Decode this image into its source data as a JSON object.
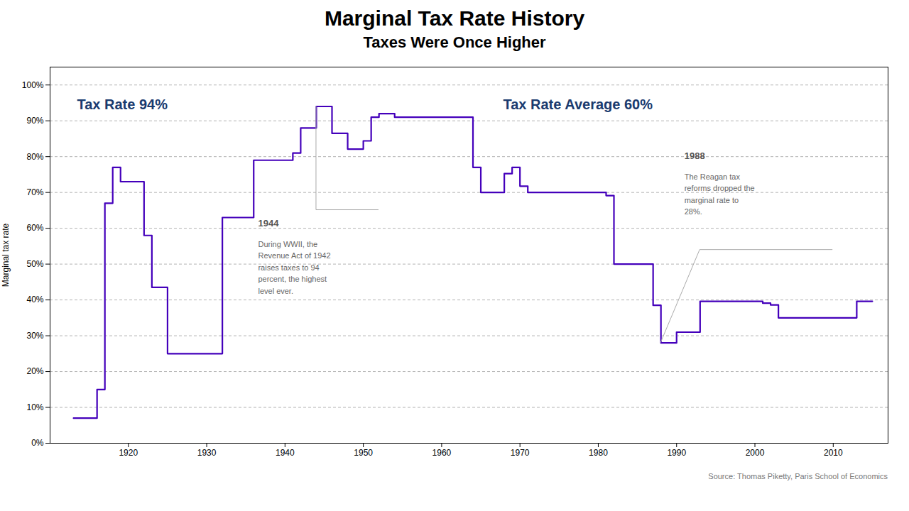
{
  "chart_data": {
    "type": "step",
    "title": "Marginal Tax Rate History",
    "subtitle": "Taxes Were Once Higher",
    "ylabel": "Marginal tax rate",
    "source": "Source: Thomas Piketty, Paris School of Economics",
    "color": "#4400bb",
    "x": [
      1913,
      1916,
      1917,
      1918,
      1919,
      1920,
      1921,
      1922,
      1923,
      1924,
      1925,
      1926,
      1927,
      1928,
      1929,
      1930,
      1931,
      1932,
      1933,
      1934,
      1935,
      1936,
      1937,
      1938,
      1939,
      1940,
      1941,
      1942,
      1943,
      1944,
      1945,
      1946,
      1947,
      1948,
      1949,
      1950,
      1951,
      1952,
      1953,
      1954,
      1955,
      1956,
      1957,
      1958,
      1959,
      1960,
      1961,
      1962,
      1963,
      1964,
      1965,
      1966,
      1967,
      1968,
      1969,
      1970,
      1971,
      1972,
      1973,
      1974,
      1975,
      1976,
      1977,
      1978,
      1979,
      1980,
      1981,
      1982,
      1983,
      1984,
      1985,
      1986,
      1987,
      1988,
      1989,
      1990,
      1991,
      1992,
      1993,
      1994,
      1995,
      1996,
      1997,
      1998,
      1999,
      2000,
      2001,
      2002,
      2003,
      2004,
      2005,
      2006,
      2007,
      2008,
      2009,
      2010,
      2011,
      2012,
      2013,
      2014,
      2015
    ],
    "values": [
      7,
      15,
      67,
      77,
      73,
      73,
      73,
      58,
      43.5,
      43.5,
      25,
      25,
      25,
      25,
      25,
      25,
      25,
      63,
      63,
      63,
      63,
      79,
      79,
      79,
      79,
      79,
      81,
      88,
      88,
      94,
      94,
      86.5,
      86.5,
      82.1,
      82.1,
      84.4,
      91,
      92,
      92,
      91,
      91,
      91,
      91,
      91,
      91,
      91,
      91,
      91,
      91,
      77,
      70,
      70,
      70,
      75.25,
      77,
      71.75,
      70,
      70,
      70,
      70,
      70,
      70,
      70,
      70,
      70,
      70,
      69.13,
      50,
      50,
      50,
      50,
      50,
      38.5,
      28,
      28,
      31,
      31,
      31,
      39.6,
      39.6,
      39.6,
      39.6,
      39.6,
      39.6,
      39.6,
      39.6,
      39.1,
      38.6,
      35,
      35,
      35,
      35,
      35,
      35,
      35,
      35,
      35,
      35,
      39.6,
      39.6,
      39.6
    ],
    "xlim": [
      1910,
      2017
    ],
    "xticks": [
      1920,
      1930,
      1940,
      1950,
      1960,
      1970,
      1980,
      1990,
      2000,
      2010
    ],
    "ylim": [
      0,
      105
    ],
    "yticks": [
      {
        "value": 0,
        "label": "0%"
      },
      {
        "value": 10,
        "label": "10%"
      },
      {
        "value": 20,
        "label": "20%"
      },
      {
        "value": 30,
        "label": "30%"
      },
      {
        "value": 40,
        "label": "40%"
      },
      {
        "value": 50,
        "label": "50%"
      },
      {
        "value": 60,
        "label": "60%"
      },
      {
        "value": 70,
        "label": "70%"
      },
      {
        "value": 80,
        "label": "80%"
      },
      {
        "value": 90,
        "label": "90%"
      },
      {
        "value": 100,
        "label": "100%"
      }
    ],
    "grid": true,
    "annotations": [
      {
        "text": "Tax Rate 94%",
        "color": "#1a3a6e"
      },
      {
        "text": "Tax Rate Average 60%",
        "color": "#1a3a6e"
      },
      {
        "title": "1944",
        "text": "During WWII, the\nRevenue Act of 1942\nraises taxes to 94\npercent, the highest\nlevel ever.",
        "x": 1944,
        "y": 94
      },
      {
        "title": "1988",
        "text": "The Reagan tax\nreforms dropped the\nmarginal rate to\n28%.",
        "x": 1988,
        "y": 28
      }
    ]
  }
}
